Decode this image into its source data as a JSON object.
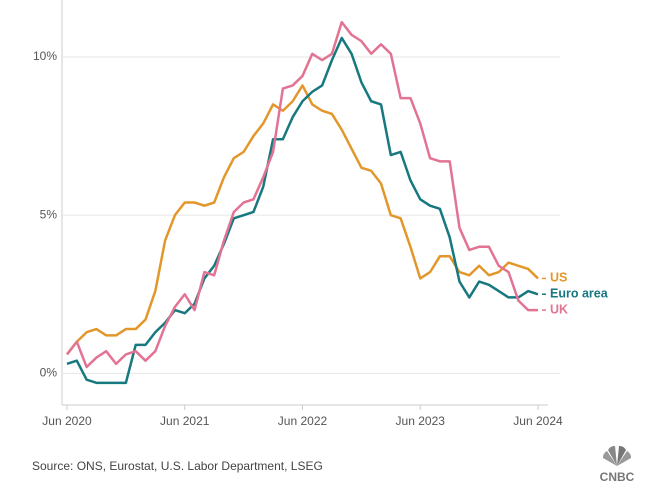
{
  "chart_data": {
    "type": "line",
    "categories": [
      "Jun 2020",
      null,
      null,
      null,
      null,
      null,
      null,
      null,
      null,
      null,
      null,
      null,
      "Jun 2021",
      null,
      null,
      null,
      null,
      null,
      null,
      null,
      null,
      null,
      null,
      null,
      "Jun 2022",
      null,
      null,
      null,
      null,
      null,
      null,
      null,
      null,
      null,
      null,
      null,
      "Jun 2023",
      null,
      null,
      null,
      null,
      null,
      null,
      null,
      null,
      null,
      null,
      null,
      "Jun 2024"
    ],
    "series": [
      {
        "name": "US",
        "color": "#e3972b",
        "values": [
          0.6,
          1.0,
          1.3,
          1.4,
          1.2,
          1.2,
          1.4,
          1.4,
          1.7,
          2.6,
          4.2,
          5.0,
          5.4,
          5.4,
          5.3,
          5.4,
          6.2,
          6.8,
          7.0,
          7.5,
          7.9,
          8.5,
          8.3,
          8.6,
          9.1,
          8.5,
          8.3,
          8.2,
          7.7,
          7.1,
          6.5,
          6.4,
          6.0,
          5.0,
          4.9,
          4.0,
          3.0,
          3.2,
          3.7,
          3.7,
          3.2,
          3.1,
          3.4,
          3.1,
          3.2,
          3.5,
          3.4,
          3.3,
          3.0
        ]
      },
      {
        "name": "Euro area",
        "color": "#17787f",
        "values": [
          0.3,
          0.4,
          -0.2,
          -0.3,
          -0.3,
          -0.3,
          -0.3,
          0.9,
          0.9,
          1.3,
          1.6,
          2.0,
          1.9,
          2.2,
          3.0,
          3.4,
          4.1,
          4.9,
          5.0,
          5.1,
          5.9,
          7.4,
          7.4,
          8.1,
          8.6,
          8.9,
          9.1,
          9.9,
          10.6,
          10.1,
          9.2,
          8.6,
          8.5,
          6.9,
          7.0,
          6.1,
          5.5,
          5.3,
          5.2,
          4.3,
          2.9,
          2.4,
          2.9,
          2.8,
          2.6,
          2.4,
          2.4,
          2.6,
          2.5
        ]
      },
      {
        "name": "UK",
        "color": "#e27393",
        "values": [
          0.6,
          1.0,
          0.2,
          0.5,
          0.7,
          0.3,
          0.6,
          0.7,
          0.4,
          0.7,
          1.5,
          2.1,
          2.5,
          2.0,
          3.2,
          3.1,
          4.2,
          5.1,
          5.4,
          5.5,
          6.2,
          7.0,
          9.0,
          9.1,
          9.4,
          10.1,
          9.9,
          10.1,
          11.1,
          10.7,
          10.5,
          10.1,
          10.4,
          10.1,
          8.7,
          8.7,
          7.9,
          6.8,
          6.7,
          6.7,
          4.6,
          3.9,
          4.0,
          4.0,
          3.4,
          3.2,
          2.3,
          2.0,
          2.0
        ]
      }
    ],
    "ylim": [
      -1,
      11.8
    ],
    "yticks": [
      {
        "value": 0,
        "label": "0%"
      },
      {
        "value": 5,
        "label": "5%"
      },
      {
        "value": 10,
        "label": "10%"
      }
    ],
    "grid": true,
    "source": "Source: ONS, Eurostat, U.S. Labor Department, LSEG",
    "logo": "CNBC"
  }
}
